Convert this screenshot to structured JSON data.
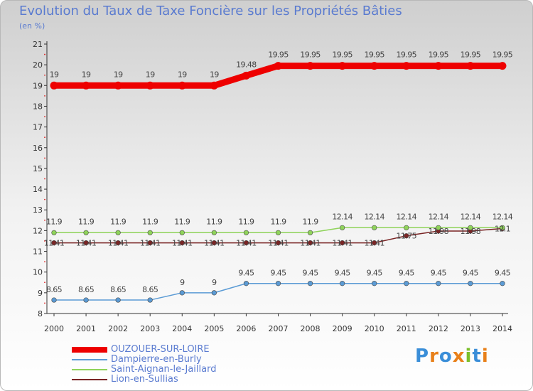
{
  "title": "Evolution du Taux de Taxe Foncière sur les Propriétés Bâties",
  "subtitle": "(en %)",
  "logo": {
    "text": "Proxiti",
    "colors": [
      "#3a8ed8",
      "#e8801a",
      "#3a8ed8",
      "#e8801a",
      "#7bbf2a",
      "#3a8ed8",
      "#e8801a"
    ]
  },
  "chart_data": {
    "type": "line",
    "title": "Evolution du Taux de Taxe Foncière sur les Propriétés Bâties",
    "ylabel": "(en %)",
    "xlabel": "",
    "categories": [
      "2000",
      "2001",
      "2002",
      "2003",
      "2004",
      "2005",
      "2006",
      "2007",
      "2008",
      "2009",
      "2010",
      "2011",
      "2012",
      "2013",
      "2014"
    ],
    "ylim": [
      8,
      21
    ],
    "yticks": [
      8,
      9,
      10,
      11,
      12,
      13,
      14,
      15,
      16,
      17,
      18,
      19,
      20,
      21
    ],
    "grid": false,
    "legend": "bottom-left",
    "series": [
      {
        "name": "OUZOUER-SUR-LOIRE",
        "color": "#ee0000",
        "width": 9,
        "values": [
          19,
          19,
          19,
          19,
          19,
          19,
          19.48,
          19.95,
          19.95,
          19.95,
          19.95,
          19.95,
          19.95,
          19.95,
          19.95
        ],
        "labels": [
          "19",
          "19",
          "19",
          "19",
          "19",
          "19",
          "19.48",
          "19.95",
          "19.95",
          "19.95",
          "19.95",
          "19.95",
          "19.95",
          "19.95",
          "19.95"
        ]
      },
      {
        "name": "Dampierre-en-Burly",
        "color": "#5b9bd5",
        "width": 1.5,
        "values": [
          8.65,
          8.65,
          8.65,
          8.65,
          9,
          9,
          9.45,
          9.45,
          9.45,
          9.45,
          9.45,
          9.45,
          9.45,
          9.45,
          9.45
        ],
        "labels": [
          "8.65",
          "8.65",
          "8.65",
          "8.65",
          "9",
          "9",
          "9.45",
          "9.45",
          "9.45",
          "9.45",
          "9.45",
          "9.45",
          "9.45",
          "9.45",
          "9.45"
        ]
      },
      {
        "name": "Saint-Aignan-le-Jaillard",
        "color": "#8fd35a",
        "width": 1.5,
        "values": [
          11.9,
          11.9,
          11.9,
          11.9,
          11.9,
          11.9,
          11.9,
          11.9,
          11.9,
          12.14,
          12.14,
          12.14,
          12.14,
          12.14,
          12.14
        ],
        "labels": [
          "11.9",
          "11.9",
          "11.9",
          "11.9",
          "11.9",
          "11.9",
          "11.9",
          "11.9",
          "11.9",
          "12.14",
          "12.14",
          "12.14",
          "12.14",
          "12.14",
          "12.14"
        ]
      },
      {
        "name": "Lion-en-Sullias",
        "color": "#7a2525",
        "width": 1.5,
        "values": [
          11.41,
          11.41,
          11.41,
          11.41,
          11.41,
          11.41,
          11.41,
          11.41,
          11.41,
          11.41,
          11.41,
          11.75,
          11.98,
          11.98,
          12.1
        ],
        "labels": [
          "11.41",
          "11.41",
          "11.41",
          "11.41",
          "11.41",
          "11.41",
          "11.41",
          "11.41",
          "11.41",
          "11.41",
          "11.41",
          "11.75",
          "11.98",
          "11.98",
          "12.1"
        ]
      }
    ]
  }
}
